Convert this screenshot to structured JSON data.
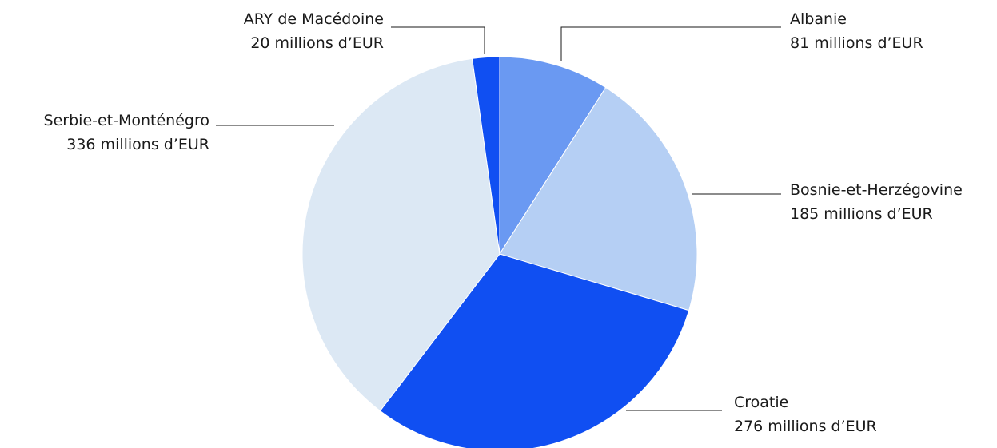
{
  "chart_data": {
    "type": "pie",
    "start_angle_deg": 0,
    "direction": "clockwise",
    "slices": [
      {
        "label": "Albanie",
        "value": 81,
        "value_label": "81 millions d’EUR",
        "color": "#6a99f2"
      },
      {
        "label": "Bosnie-et-Herzégovine",
        "value": 185,
        "value_label": "185 millions d’EUR",
        "color": "#b5cff4"
      },
      {
        "label": "Croatie",
        "value": 276,
        "value_label": "276 millions d’EUR",
        "color": "#104ff2"
      },
      {
        "label": "Serbie-et-Monténégro",
        "value": 336,
        "value_label": "336 millions d’EUR",
        "color": "#dce8f4"
      },
      {
        "label": "ARY de Macédoine",
        "value": 20,
        "value_label": "20 millions d’EUR",
        "color": "#104ff2"
      }
    ]
  }
}
